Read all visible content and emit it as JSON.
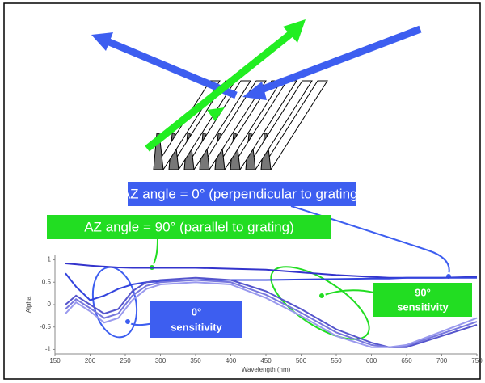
{
  "annotations": {
    "az0": "AZ angle = 0° (perpendicular to grating)",
    "az90": "AZ angle = 90° (parallel to grating)",
    "sens0": [
      "0°",
      "sensitivity"
    ],
    "sens90": [
      "90°",
      "sensitivity"
    ]
  },
  "chart_data": {
    "type": "line",
    "xlabel": "Wavelength (nm)",
    "ylabel": "Alpha",
    "x": [
      165,
      180,
      200,
      220,
      240,
      260,
      280,
      300,
      350,
      400,
      450,
      500,
      550,
      600,
      625,
      650,
      700,
      750
    ],
    "xlim": [
      150,
      750
    ],
    "xticks": [
      150,
      200,
      250,
      300,
      350,
      400,
      450,
      500,
      550,
      600,
      650,
      700,
      750
    ],
    "ylim": [
      -1.1,
      1.1
    ],
    "yticks": [
      -1,
      -0.5,
      0,
      0.5,
      1
    ],
    "series": [
      {
        "color": "#3333cc",
        "values": [
          0.92,
          0.9,
          0.87,
          0.85,
          0.83,
          0.82,
          0.82,
          0.82,
          0.82,
          0.8,
          0.78,
          0.72,
          0.66,
          0.62,
          0.6,
          0.6,
          0.6,
          0.62
        ]
      },
      {
        "color": "#3344dd",
        "values": [
          0.7,
          0.4,
          0.1,
          0.2,
          0.35,
          0.45,
          0.5,
          0.52,
          0.55,
          0.55,
          0.55,
          0.56,
          0.57,
          0.58,
          0.58,
          0.6,
          0.6,
          0.6
        ]
      },
      {
        "color": "#5555cc",
        "values": [
          0,
          0.2,
          0,
          -0.2,
          -0.1,
          0.3,
          0.5,
          0.55,
          0.6,
          0.55,
          0.3,
          -0.1,
          -0.55,
          -0.85,
          -0.95,
          -0.95,
          -0.7,
          -0.45
        ]
      },
      {
        "color": "#7777dd",
        "values": [
          -0.1,
          0.12,
          -0.08,
          -0.3,
          -0.2,
          0.2,
          0.42,
          0.5,
          0.55,
          0.5,
          0.22,
          -0.18,
          -0.62,
          -0.9,
          -0.95,
          -0.92,
          -0.65,
          -0.38
        ]
      },
      {
        "color": "#9999ee",
        "values": [
          -0.2,
          0.05,
          -0.15,
          -0.4,
          -0.3,
          0.1,
          0.35,
          0.45,
          0.5,
          0.45,
          0.15,
          -0.25,
          -0.7,
          -0.95,
          -0.95,
          -0.9,
          -0.6,
          -0.3
        ]
      }
    ]
  }
}
